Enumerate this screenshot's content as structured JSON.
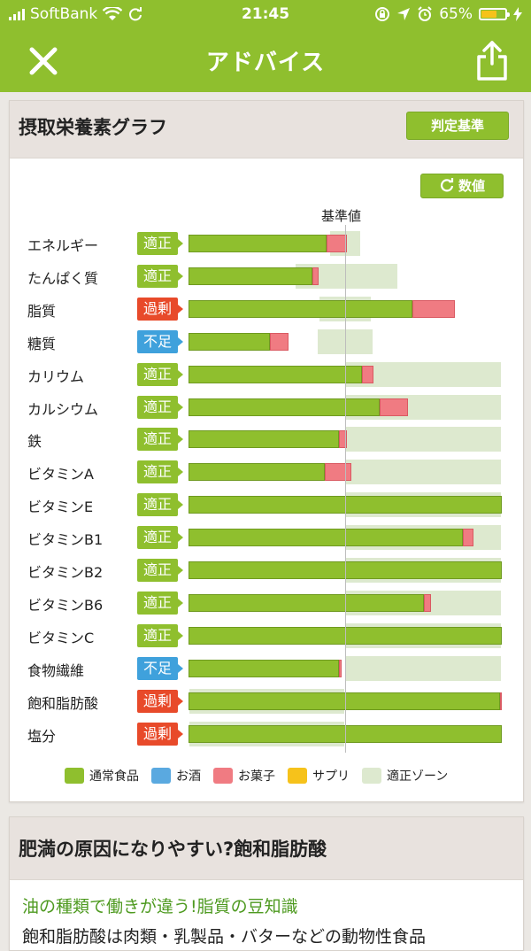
{
  "status_bar": {
    "carrier": "SoftBank",
    "time": "21:45",
    "battery": "65%",
    "battery_level": 0.65
  },
  "nav": {
    "title": "アドバイス",
    "close_icon": "close-icon",
    "share_icon": "share-icon"
  },
  "nutrient_card": {
    "title": "摂取栄養素グラフ",
    "criteria_button": "判定基準",
    "values_button": "数値",
    "reference_label": "基準値",
    "axis_reference_percent": 100,
    "axis_max_percent": 200,
    "legend": [
      {
        "label": "通常食品",
        "color": "#8fbf2e"
      },
      {
        "label": "お酒",
        "color": "#5aa9e0"
      },
      {
        "label": "お菓子",
        "color": "#f07b82"
      },
      {
        "label": "サプリ",
        "color": "#f6c21b"
      },
      {
        "label": "適正ゾーン",
        "color": "#dde9cf"
      }
    ],
    "colors": {
      "food": "#8fbf2e",
      "snack": "#f07b82",
      "zone": "#dde9cf",
      "ok": "#8fbf2e",
      "over": "#e84a2a",
      "under": "#3fa1dc"
    },
    "rows": [
      {
        "name": "エネルギー",
        "status": "適正",
        "kind": "ok",
        "food": 88,
        "snack": 13,
        "zone": [
          90,
          110
        ]
      },
      {
        "name": "たんぱく質",
        "status": "適正",
        "kind": "ok",
        "food": 79,
        "snack": 4,
        "zone": [
          68,
          134
        ]
      },
      {
        "name": "脂質",
        "status": "過剰",
        "kind": "over",
        "food": 143,
        "snack": 27,
        "zone": [
          83,
          117
        ]
      },
      {
        "name": "糖質",
        "status": "不足",
        "kind": "under",
        "food": 52,
        "snack": 12,
        "zone": [
          82,
          118
        ]
      },
      {
        "name": "カリウム",
        "status": "適正",
        "kind": "ok",
        "food": 111,
        "snack": 7,
        "zone": [
          100,
          200
        ]
      },
      {
        "name": "カルシウム",
        "status": "適正",
        "kind": "ok",
        "food": 122,
        "snack": 18,
        "zone": [
          100,
          200
        ]
      },
      {
        "name": "鉄",
        "status": "適正",
        "kind": "ok",
        "food": 96,
        "snack": 5,
        "zone": [
          100,
          200
        ]
      },
      {
        "name": "ビタミンA",
        "status": "適正",
        "kind": "ok",
        "food": 87,
        "snack": 17,
        "zone": [
          100,
          200
        ]
      },
      {
        "name": "ビタミンE",
        "status": "適正",
        "kind": "ok",
        "food": 200,
        "snack": 0,
        "zone": [
          100,
          200
        ]
      },
      {
        "name": "ビタミンB1",
        "status": "適正",
        "kind": "ok",
        "food": 175,
        "snack": 7,
        "zone": [
          100,
          200
        ]
      },
      {
        "name": "ビタミンB2",
        "status": "適正",
        "kind": "ok",
        "food": 200,
        "snack": 0,
        "zone": [
          100,
          200
        ]
      },
      {
        "name": "ビタミンB6",
        "status": "適正",
        "kind": "ok",
        "food": 150,
        "snack": 5,
        "zone": [
          100,
          200
        ]
      },
      {
        "name": "ビタミンC",
        "status": "適正",
        "kind": "ok",
        "food": 200,
        "snack": 0,
        "zone": [
          100,
          200
        ]
      },
      {
        "name": "食物繊維",
        "status": "不足",
        "kind": "under",
        "food": 96,
        "snack": 2,
        "zone": [
          100,
          200
        ]
      },
      {
        "name": "飽和脂肪酸",
        "status": "過剰",
        "kind": "over",
        "food": 199,
        "snack": 1,
        "zone": [
          0,
          100
        ]
      },
      {
        "name": "塩分",
        "status": "過剰",
        "kind": "over",
        "food": 200,
        "snack": 0,
        "zone": [
          0,
          100
        ]
      }
    ]
  },
  "article_card": {
    "title": "肥満の原因になりやすい?飽和脂肪酸",
    "tip_title": "油の種類で働きが違う!脂質の豆知識",
    "tip_body": "飽和脂肪酸は肉類・乳製品・バターなどの動物性食品"
  }
}
